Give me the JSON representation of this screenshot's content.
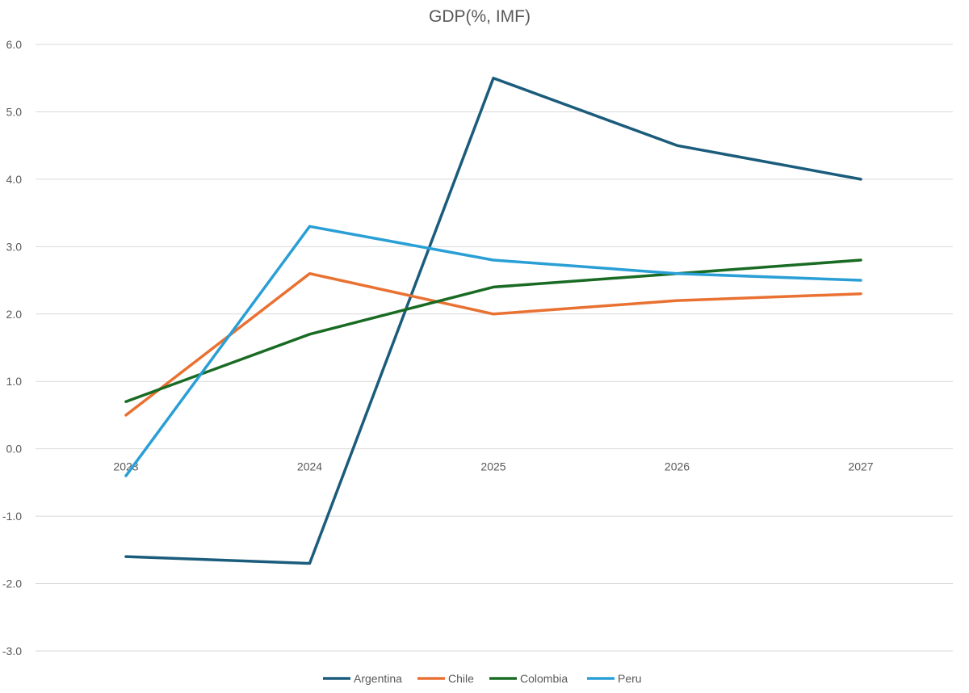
{
  "chart_data": {
    "type": "line",
    "title": "GDP(%, IMF)",
    "xlabel": "",
    "ylabel": "",
    "categories": [
      "2023",
      "2024",
      "2025",
      "2026",
      "2027"
    ],
    "ylim": [
      -3.0,
      6.0
    ],
    "yticks": [
      "-3.0",
      "-2.0",
      "-1.0",
      "0.0",
      "1.0",
      "2.0",
      "3.0",
      "4.0",
      "5.0",
      "6.0"
    ],
    "grid": true,
    "legend_position": "bottom",
    "series": [
      {
        "name": "Argentina",
        "color": "#1b5c7c",
        "values": [
          -1.6,
          -1.7,
          5.5,
          4.5,
          4.0
        ]
      },
      {
        "name": "Chile",
        "color": "#e97132",
        "values": [
          0.5,
          2.6,
          2.0,
          2.2,
          2.3
        ]
      },
      {
        "name": "Colombia",
        "color": "#196b24",
        "values": [
          0.7,
          1.7,
          2.4,
          2.6,
          2.8
        ]
      },
      {
        "name": "Peru",
        "color": "#2a9fd6",
        "values": [
          -0.4,
          3.3,
          2.8,
          2.6,
          2.5
        ]
      }
    ]
  }
}
